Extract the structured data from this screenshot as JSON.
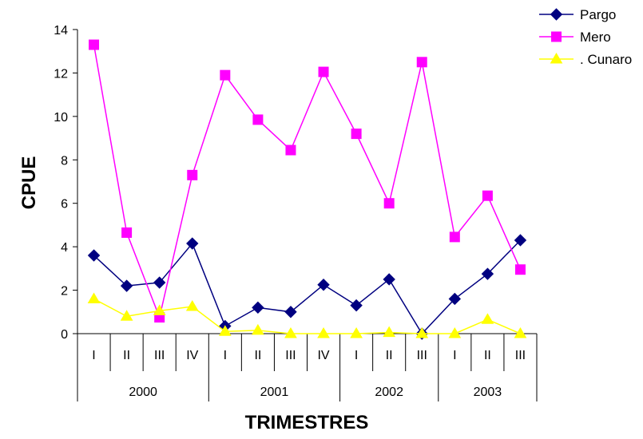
{
  "chart_data": {
    "type": "line",
    "ylabel": "CPUE",
    "xlabel": "TRIMESTRES",
    "ylim": [
      0,
      14
    ],
    "yticks": [
      0,
      2,
      4,
      6,
      8,
      10,
      12,
      14
    ],
    "legend_position": "top-right",
    "categories": [
      {
        "quarter": "I",
        "year": "2000"
      },
      {
        "quarter": "II",
        "year": "2000"
      },
      {
        "quarter": "III",
        "year": "2000"
      },
      {
        "quarter": "IV",
        "year": "2000"
      },
      {
        "quarter": "I",
        "year": "2001"
      },
      {
        "quarter": "II",
        "year": "2001"
      },
      {
        "quarter": "III",
        "year": "2001"
      },
      {
        "quarter": "IV",
        "year": "2001"
      },
      {
        "quarter": "I",
        "year": "2002"
      },
      {
        "quarter": "II",
        "year": "2002"
      },
      {
        "quarter": "III",
        "year": "2002"
      },
      {
        "quarter": "I",
        "year": "2003"
      },
      {
        "quarter": "II",
        "year": "2003"
      },
      {
        "quarter": "III",
        "year": "2003"
      }
    ],
    "years": [
      "2000",
      "2001",
      "2002",
      "2003"
    ],
    "series": [
      {
        "name": "Pargo",
        "color": "#000080",
        "marker": "diamond",
        "values": [
          3.6,
          2.2,
          2.35,
          4.15,
          0.35,
          1.2,
          1.0,
          2.25,
          1.3,
          2.5,
          0.0,
          1.6,
          2.75,
          4.3
        ]
      },
      {
        "name": "Mero",
        "color": "#FF00FF",
        "marker": "square",
        "values": [
          13.3,
          4.65,
          0.75,
          7.3,
          11.9,
          9.85,
          8.45,
          12.05,
          9.2,
          6.0,
          12.5,
          4.45,
          6.35,
          2.95
        ]
      },
      {
        "name": ". Cunaro",
        "color": "#FFFF00",
        "marker": "triangle",
        "values": [
          1.6,
          0.8,
          1.05,
          1.25,
          0.1,
          0.15,
          0.0,
          0.0,
          0.0,
          0.05,
          0.0,
          0.0,
          0.65,
          0.0
        ]
      }
    ]
  }
}
